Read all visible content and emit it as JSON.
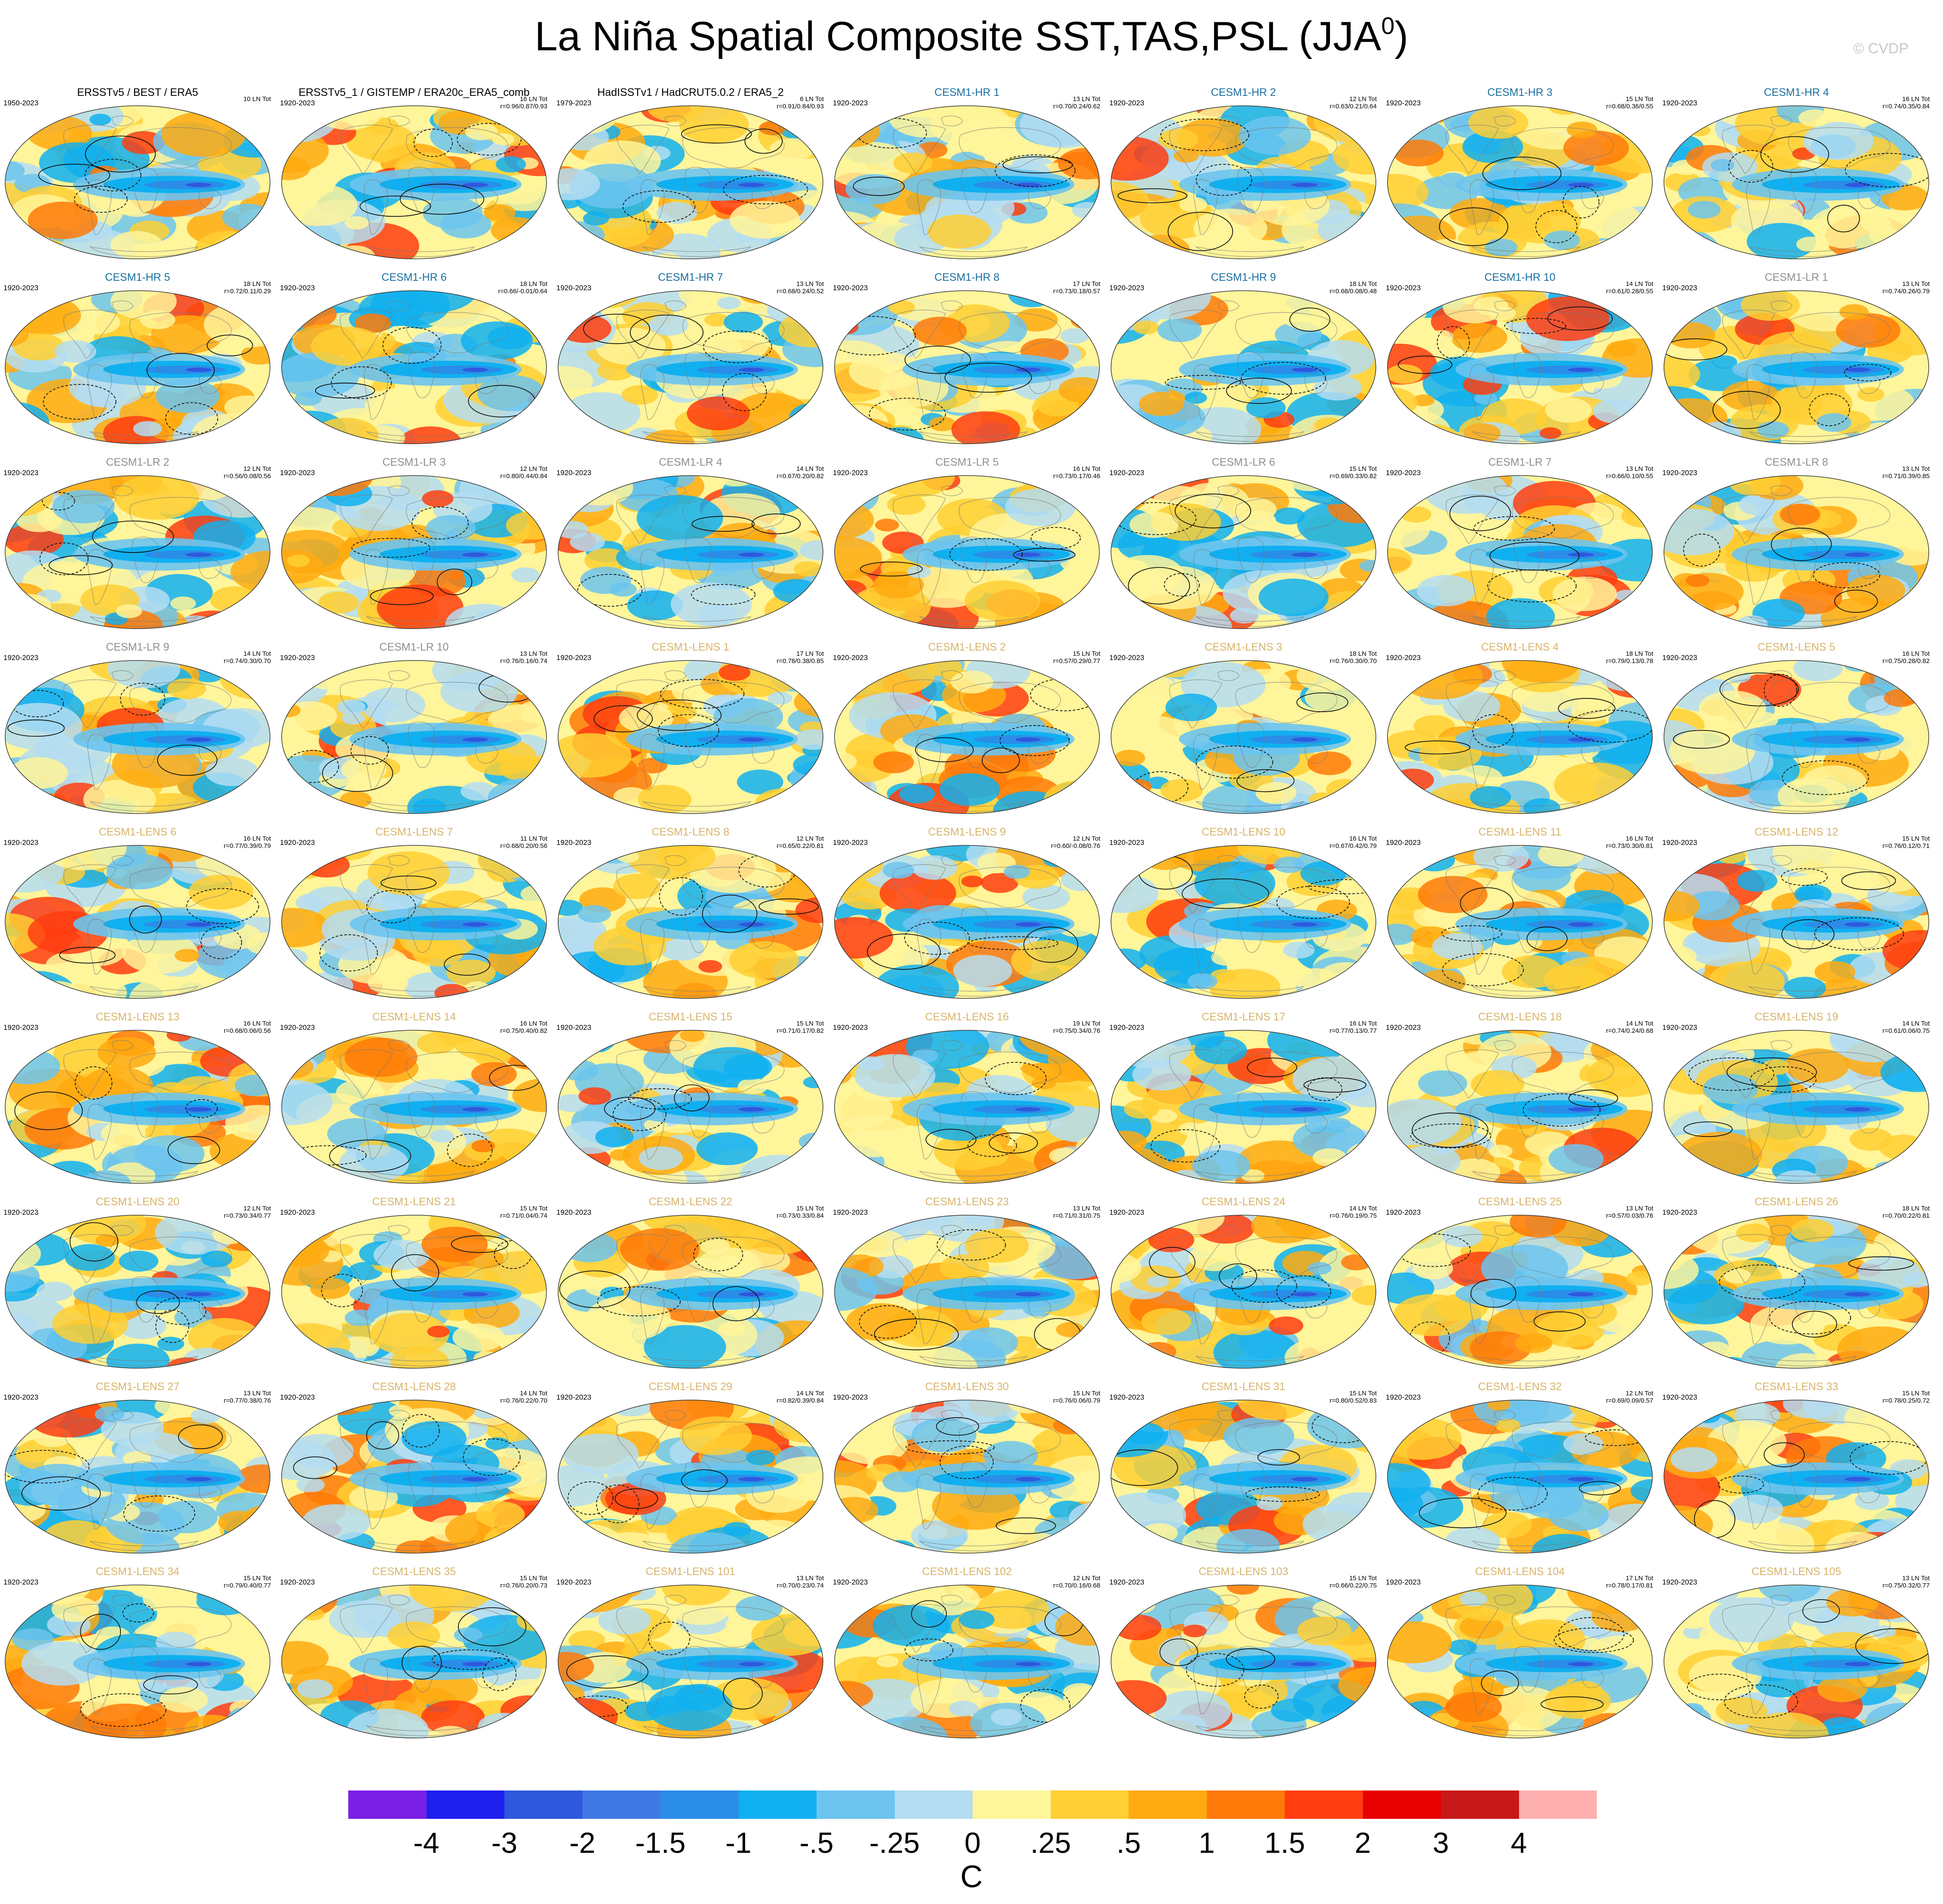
{
  "title": {
    "main": "La Niña Spatial Composite SST,TAS,PSL (JJA",
    "superscript": "0",
    "close": ")"
  },
  "watermark": "© CVDP",
  "colors": {
    "obs_title": "#000000",
    "hr_title": "#1a6fa0",
    "lr_title": "#8f8f8f",
    "lens_title": "#d8b46a"
  },
  "chart_data": {
    "type": "heatmap",
    "map_projection": "robinson",
    "fields": [
      "SST",
      "TAS",
      "PSL"
    ],
    "season": "JJA0",
    "colorbar": {
      "units": "C",
      "tick_labels": [
        "-4",
        "-3",
        "-2",
        "-1.5",
        "-1",
        "-.5",
        "-.25",
        "0",
        ".25",
        ".5",
        "1",
        "1.5",
        "2",
        "3",
        "4"
      ],
      "colors": [
        "#7a1fe6",
        "#1f1ff0",
        "#2f58dc",
        "#3f78e4",
        "#2a8de8",
        "#10b0f0",
        "#6cc4ee",
        "#b4ddf2",
        "#fff59a",
        "#ffcf33",
        "#ffaa10",
        "#ff7a08",
        "#ff3d10",
        "#e60000",
        "#c81818",
        "#ffb0b0"
      ]
    },
    "panels": [
      {
        "title": "ERSSTv5 / BEST / ERA5",
        "group": "obs",
        "years": "1950-2023",
        "count": "10 LN Tot",
        "stats": ""
      },
      {
        "title": "ERSSTv5_1 / GISTEMP / ERA20c_ERA5_comb",
        "group": "obs",
        "years": "1920-2023",
        "count": "16 LN Tot",
        "stats": "r=0.96/0.87/0.93"
      },
      {
        "title": "HadISSTv1 / HadCRUT5.0.2 / ERA5_2",
        "group": "obs",
        "years": "1979-2023",
        "count": "6 LN Tot",
        "stats": "r=0.91/0.84/0.93"
      },
      {
        "title": "CESM1-HR 1",
        "group": "hr",
        "years": "1920-2023",
        "count": "13 LN Tot",
        "stats": "r=0.70/0.24/0.62"
      },
      {
        "title": "CESM1-HR 2",
        "group": "hr",
        "years": "1920-2023",
        "count": "12 LN Tot",
        "stats": "r=0.63/0.21/0.64"
      },
      {
        "title": "CESM1-HR 3",
        "group": "hr",
        "years": "1920-2023",
        "count": "15 LN Tot",
        "stats": "r=0.68/0.36/0.55"
      },
      {
        "title": "CESM1-HR 4",
        "group": "hr",
        "years": "1920-2023",
        "count": "16 LN Tot",
        "stats": "r=0.74/0.35/0.84"
      },
      {
        "title": "CESM1-HR 5",
        "group": "hr",
        "years": "1920-2023",
        "count": "18 LN Tot",
        "stats": "r=0.72/0.11/0.29"
      },
      {
        "title": "CESM1-HR 6",
        "group": "hr",
        "years": "1920-2023",
        "count": "18 LN Tot",
        "stats": "r=0.66/-0.01/0.64"
      },
      {
        "title": "CESM1-HR 7",
        "group": "hr",
        "years": "1920-2023",
        "count": "13 LN Tot",
        "stats": "r=0.68/0.24/0.52"
      },
      {
        "title": "CESM1-HR 8",
        "group": "hr",
        "years": "1920-2023",
        "count": "17 LN Tot",
        "stats": "r=0.73/0.18/0.57"
      },
      {
        "title": "CESM1-HR 9",
        "group": "hr",
        "years": "1920-2023",
        "count": "18 LN Tot",
        "stats": "r=0.68/0.08/0.48"
      },
      {
        "title": "CESM1-HR 10",
        "group": "hr",
        "years": "1920-2023",
        "count": "14 LN Tot",
        "stats": "r=0.61/0.28/0.55"
      },
      {
        "title": "CESM1-LR 1",
        "group": "lr",
        "years": "1920-2023",
        "count": "13 LN Tot",
        "stats": "r=0.74/0.26/0.79"
      },
      {
        "title": "CESM1-LR 2",
        "group": "lr",
        "years": "1920-2023",
        "count": "12 LN Tot",
        "stats": "r=0.56/0.08/0.56"
      },
      {
        "title": "CESM1-LR 3",
        "group": "lr",
        "years": "1920-2023",
        "count": "12 LN Tot",
        "stats": "r=0.80/0.44/0.84"
      },
      {
        "title": "CESM1-LR 4",
        "group": "lr",
        "years": "1920-2023",
        "count": "14 LN Tot",
        "stats": "r=0.67/0.20/0.82"
      },
      {
        "title": "CESM1-LR 5",
        "group": "lr",
        "years": "1920-2023",
        "count": "16 LN Tot",
        "stats": "r=0.73/0.17/0.46"
      },
      {
        "title": "CESM1-LR 6",
        "group": "lr",
        "years": "1920-2023",
        "count": "15 LN Tot",
        "stats": "r=0.69/0.33/0.82"
      },
      {
        "title": "CESM1-LR 7",
        "group": "lr",
        "years": "1920-2023",
        "count": "13 LN Tot",
        "stats": "r=0.66/0.10/0.55"
      },
      {
        "title": "CESM1-LR 8",
        "group": "lr",
        "years": "1920-2023",
        "count": "13 LN Tot",
        "stats": "r=0.71/0.39/0.85"
      },
      {
        "title": "CESM1-LR 9",
        "group": "lr",
        "years": "1920-2023",
        "count": "14 LN Tot",
        "stats": "r=0.74/0.30/0.70"
      },
      {
        "title": "CESM1-LR 10",
        "group": "lr",
        "years": "1920-2023",
        "count": "13 LN Tot",
        "stats": "r=0.76/0.16/0.74"
      },
      {
        "title": "CESM1-LENS 1",
        "group": "lens",
        "years": "1920-2023",
        "count": "17 LN Tot",
        "stats": "r=0.78/0.38/0.85"
      },
      {
        "title": "CESM1-LENS 2",
        "group": "lens",
        "years": "1920-2023",
        "count": "15 LN Tot",
        "stats": "r=0.57/0.29/0.77"
      },
      {
        "title": "CESM1-LENS 3",
        "group": "lens",
        "years": "1920-2023",
        "count": "18 LN Tot",
        "stats": "r=0.76/0.30/0.70"
      },
      {
        "title": "CESM1-LENS 4",
        "group": "lens",
        "years": "1920-2023",
        "count": "18 LN Tot",
        "stats": "r=0.79/0.13/0.78"
      },
      {
        "title": "CESM1-LENS 5",
        "group": "lens",
        "years": "1920-2023",
        "count": "16 LN Tot",
        "stats": "r=0.75/0.28/0.82"
      },
      {
        "title": "CESM1-LENS 6",
        "group": "lens",
        "years": "1920-2023",
        "count": "16 LN Tot",
        "stats": "r=0.77/0.39/0.79"
      },
      {
        "title": "CESM1-LENS 7",
        "group": "lens",
        "years": "1920-2023",
        "count": "11 LN Tot",
        "stats": "r=0.68/0.20/0.56"
      },
      {
        "title": "CESM1-LENS 8",
        "group": "lens",
        "years": "1920-2023",
        "count": "12 LN Tot",
        "stats": "r=0.65/0.22/0.81"
      },
      {
        "title": "CESM1-LENS 9",
        "group": "lens",
        "years": "1920-2023",
        "count": "12 LN Tot",
        "stats": "r=0.60/-0.08/0.76"
      },
      {
        "title": "CESM1-LENS 10",
        "group": "lens",
        "years": "1920-2023",
        "count": "16 LN Tot",
        "stats": "r=0.67/0.42/0.79"
      },
      {
        "title": "CESM1-LENS 11",
        "group": "lens",
        "years": "1920-2023",
        "count": "16 LN Tot",
        "stats": "r=0.73/0.30/0.81"
      },
      {
        "title": "CESM1-LENS 12",
        "group": "lens",
        "years": "1920-2023",
        "count": "15 LN Tot",
        "stats": "r=0.76/0.12/0.71"
      },
      {
        "title": "CESM1-LENS 13",
        "group": "lens",
        "years": "1920-2023",
        "count": "16 LN Tot",
        "stats": "r=0.68/0.06/0.56"
      },
      {
        "title": "CESM1-LENS 14",
        "group": "lens",
        "years": "1920-2023",
        "count": "16 LN Tot",
        "stats": "r=0.75/0.40/0.82"
      },
      {
        "title": "CESM1-LENS 15",
        "group": "lens",
        "years": "1920-2023",
        "count": "15 LN Tot",
        "stats": "r=0.71/0.17/0.82"
      },
      {
        "title": "CESM1-LENS 16",
        "group": "lens",
        "years": "1920-2023",
        "count": "19 LN Tot",
        "stats": "r=0.75/0.34/0.76"
      },
      {
        "title": "CESM1-LENS 17",
        "group": "lens",
        "years": "1920-2023",
        "count": "16 LN Tot",
        "stats": "r=0.77/0.13/0.77"
      },
      {
        "title": "CESM1-LENS 18",
        "group": "lens",
        "years": "1920-2023",
        "count": "14 LN Tot",
        "stats": "r=0.74/0.24/0.68"
      },
      {
        "title": "CESM1-LENS 19",
        "group": "lens",
        "years": "1920-2023",
        "count": "14 LN Tot",
        "stats": "r=0.61/0.06/0.75"
      },
      {
        "title": "CESM1-LENS 20",
        "group": "lens",
        "years": "1920-2023",
        "count": "12 LN Tot",
        "stats": "r=0.73/0.34/0.77"
      },
      {
        "title": "CESM1-LENS 21",
        "group": "lens",
        "years": "1920-2023",
        "count": "15 LN Tot",
        "stats": "r=0.71/0.04/0.74"
      },
      {
        "title": "CESM1-LENS 22",
        "group": "lens",
        "years": "1920-2023",
        "count": "15 LN Tot",
        "stats": "r=0.73/0.33/0.84"
      },
      {
        "title": "CESM1-LENS 23",
        "group": "lens",
        "years": "1920-2023",
        "count": "13 LN Tot",
        "stats": "r=0.71/0.31/0.75"
      },
      {
        "title": "CESM1-LENS 24",
        "group": "lens",
        "years": "1920-2023",
        "count": "14 LN Tot",
        "stats": "r=0.76/0.19/0.75"
      },
      {
        "title": "CESM1-LENS 25",
        "group": "lens",
        "years": "1920-2023",
        "count": "13 LN Tot",
        "stats": "r=0.57/0.03/0.76"
      },
      {
        "title": "CESM1-LENS 26",
        "group": "lens",
        "years": "1920-2023",
        "count": "18 LN Tot",
        "stats": "r=0.70/0.22/0.81"
      },
      {
        "title": "CESM1-LENS 27",
        "group": "lens",
        "years": "1920-2023",
        "count": "13 LN Tot",
        "stats": "r=0.77/0.38/0.76"
      },
      {
        "title": "CESM1-LENS 28",
        "group": "lens",
        "years": "1920-2023",
        "count": "14 LN Tot",
        "stats": "r=0.76/0.22/0.70"
      },
      {
        "title": "CESM1-LENS 29",
        "group": "lens",
        "years": "1920-2023",
        "count": "14 LN Tot",
        "stats": "r=0.82/0.39/0.84"
      },
      {
        "title": "CESM1-LENS 30",
        "group": "lens",
        "years": "1920-2023",
        "count": "15 LN Tot",
        "stats": "r=0.76/0.06/0.79"
      },
      {
        "title": "CESM1-LENS 31",
        "group": "lens",
        "years": "1920-2023",
        "count": "15 LN Tot",
        "stats": "r=0.80/0.52/0.83"
      },
      {
        "title": "CESM1-LENS 32",
        "group": "lens",
        "years": "1920-2023",
        "count": "12 LN Tot",
        "stats": "r=0.69/0.09/0.57"
      },
      {
        "title": "CESM1-LENS 33",
        "group": "lens",
        "years": "1920-2023",
        "count": "15 LN Tot",
        "stats": "r=0.78/0.25/0.72"
      },
      {
        "title": "CESM1-LENS 34",
        "group": "lens",
        "years": "1920-2023",
        "count": "15 LN Tot",
        "stats": "r=0.79/0.40/0.77"
      },
      {
        "title": "CESM1-LENS 35",
        "group": "lens",
        "years": "1920-2023",
        "count": "15 LN Tot",
        "stats": "r=0.76/0.20/0.73"
      },
      {
        "title": "CESM1-LENS 101",
        "group": "lens",
        "years": "1920-2023",
        "count": "13 LN Tot",
        "stats": "r=0.70/0.23/0.74"
      },
      {
        "title": "CESM1-LENS 102",
        "group": "lens",
        "years": "1920-2023",
        "count": "12 LN Tot",
        "stats": "r=0.70/0.16/0.68"
      },
      {
        "title": "CESM1-LENS 103",
        "group": "lens",
        "years": "1920-2023",
        "count": "15 LN Tot",
        "stats": "r=0.66/0.22/0.75"
      },
      {
        "title": "CESM1-LENS 104",
        "group": "lens",
        "years": "1920-2023",
        "count": "17 LN Tot",
        "stats": "r=0.78/0.17/0.81"
      },
      {
        "title": "CESM1-LENS 105",
        "group": "lens",
        "years": "1920-2023",
        "count": "13 LN Tot",
        "stats": "r=0.75/0.32/0.77"
      }
    ]
  }
}
